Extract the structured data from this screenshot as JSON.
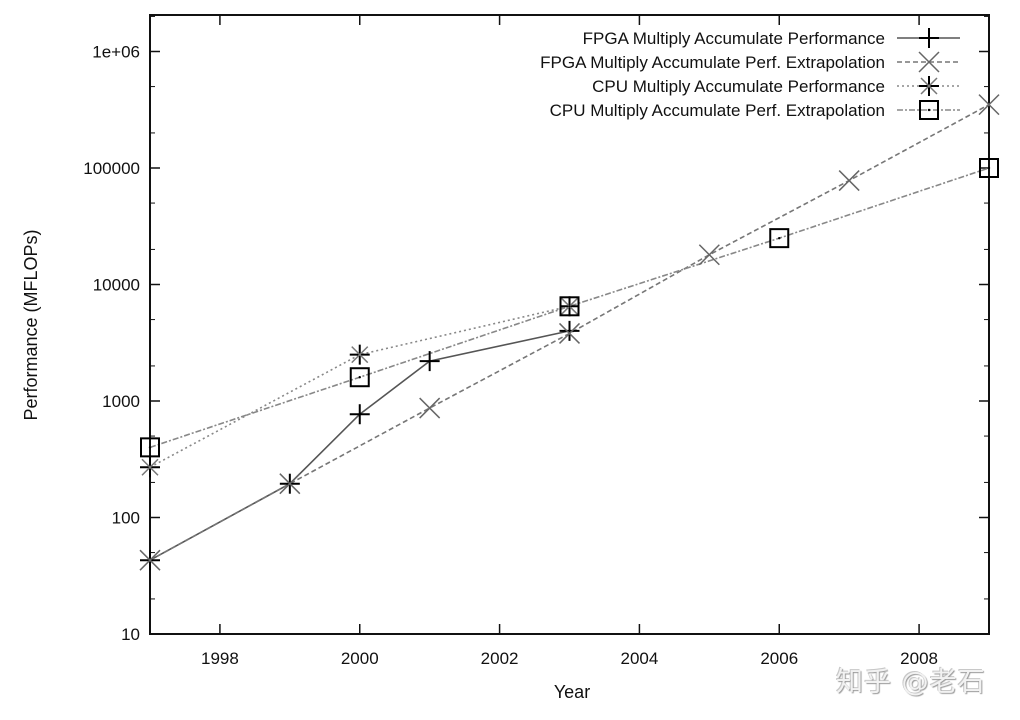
{
  "chart_data": {
    "type": "line",
    "title": "",
    "xlabel": "Year",
    "ylabel": "Performance (MFLOPs)",
    "yscale": "log",
    "xlim": [
      1997,
      2009
    ],
    "ylim": [
      10,
      1500000
    ],
    "x_ticks": [
      "1998",
      "2000",
      "2002",
      "2004",
      "2006",
      "2008"
    ],
    "y_ticks": [
      "10",
      "100",
      "1000",
      "10000",
      "100000",
      "1e+06"
    ],
    "grid": false,
    "legend_position": "top-right",
    "series": [
      {
        "name": "FPGA Multiply Accumulate Performance",
        "marker": "plus",
        "line": "solid",
        "color": "#555555",
        "x": [
          1997,
          1999,
          2000,
          2001,
          2003
        ],
        "values": [
          43,
          195,
          770,
          2200,
          4000
        ]
      },
      {
        "name": "FPGA Multiply Accumulate Perf. Extrapolation",
        "marker": "cross",
        "line": "dashed",
        "color": "#777777",
        "x": [
          1997,
          1999,
          2001,
          2003,
          2005,
          2007,
          2009
        ],
        "values": [
          43,
          195,
          870,
          3800,
          18000,
          78000,
          350000
        ]
      },
      {
        "name": "CPU Multiply Accumulate Performance",
        "marker": "asterisk",
        "line": "dotted",
        "color": "#888888",
        "x": [
          1997,
          2000,
          2003
        ],
        "values": [
          270,
          2500,
          6500
        ]
      },
      {
        "name": "CPU Multiply Accumulate Perf. Extrapolation",
        "marker": "square",
        "line": "dash-dot",
        "color": "#888888",
        "x": [
          1997,
          2000,
          2003,
          2006,
          2009
        ],
        "values": [
          400,
          1600,
          6500,
          25000,
          100000
        ]
      }
    ]
  },
  "watermark": "知乎 @老石"
}
